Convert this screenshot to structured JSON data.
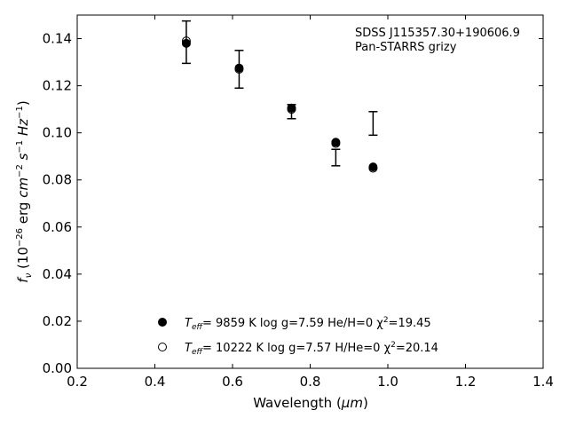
{
  "chart_data": {
    "type": "scatter",
    "xlabel": "Wavelength (μm)",
    "ylabel": "f_ν (10^-26 erg cm^-2 s^-1 Hz^-1)",
    "xlim": [
      0.2,
      1.4
    ],
    "ylim": [
      0.0,
      0.15
    ],
    "xticks": [
      0.2,
      0.4,
      0.6,
      0.8,
      1.0,
      1.2,
      1.4
    ],
    "yticks": [
      0.0,
      0.02,
      0.04,
      0.06,
      0.08,
      0.1,
      0.12,
      0.14
    ],
    "xtick_labels": [
      "0.2",
      "0.4",
      "0.6",
      "0.8",
      "1.0",
      "1.2",
      "1.4"
    ],
    "ytick_labels": [
      "0.00",
      "0.02",
      "0.04",
      "0.06",
      "0.08",
      "0.10",
      "0.12",
      "0.14"
    ],
    "annotation": [
      "SDSS J115357.30+190606.9",
      "Pan-STARRS grizy"
    ],
    "grid": false,
    "legend_position": "bottom-center",
    "observed": {
      "x": [
        0.481,
        0.617,
        0.752,
        0.866,
        0.962
      ],
      "y": [
        0.1385,
        0.127,
        0.109,
        0.0895,
        0.104
      ],
      "yerr": [
        0.009,
        0.008,
        0.003,
        0.0035,
        0.005
      ]
    },
    "series": [
      {
        "name": "T_eff=  9859 K  log g=7.59  He/H=0  χ²=19.45",
        "marker": "filled-circle",
        "x": [
          0.481,
          0.617,
          0.752,
          0.866,
          0.962
        ],
        "y": [
          0.138,
          0.1275,
          0.1105,
          0.096,
          0.0855
        ]
      },
      {
        "name": "T_eff= 10222 K  log g=7.57  H/He=0  χ²=20.14",
        "marker": "open-circle",
        "x": [
          0.481,
          0.617,
          0.752,
          0.866,
          0.962
        ],
        "y": [
          0.139,
          0.127,
          0.11,
          0.0955,
          0.085
        ]
      }
    ],
    "legend": {
      "entries": [
        {
          "teff_label": "T",
          "teff_sub": "eff",
          "teff_value": "=  9859 K  log g=7.59  He/H=0  χ",
          "chi_sup": "2",
          "chi_value": "=19.45"
        },
        {
          "teff_label": "T",
          "teff_sub": "eff",
          "teff_value": "= 10222 K  log g=7.57  H/He=0  χ",
          "chi_sup": "2",
          "chi_value": "=20.14"
        }
      ]
    },
    "xlabel_parts": {
      "main": "Wavelength (",
      "unit": "μm",
      "close": ")"
    },
    "ylabel_parts": {
      "f": "f",
      "nu": "ν",
      "open": " (10",
      "exp1": "−26",
      "erg": " erg ",
      "cm": "cm",
      "exp2": "−2",
      "sp": " ",
      "s": "s",
      "exp3": "−1",
      "hz": " Hz",
      "exp4": "−1",
      "close": ")"
    }
  }
}
